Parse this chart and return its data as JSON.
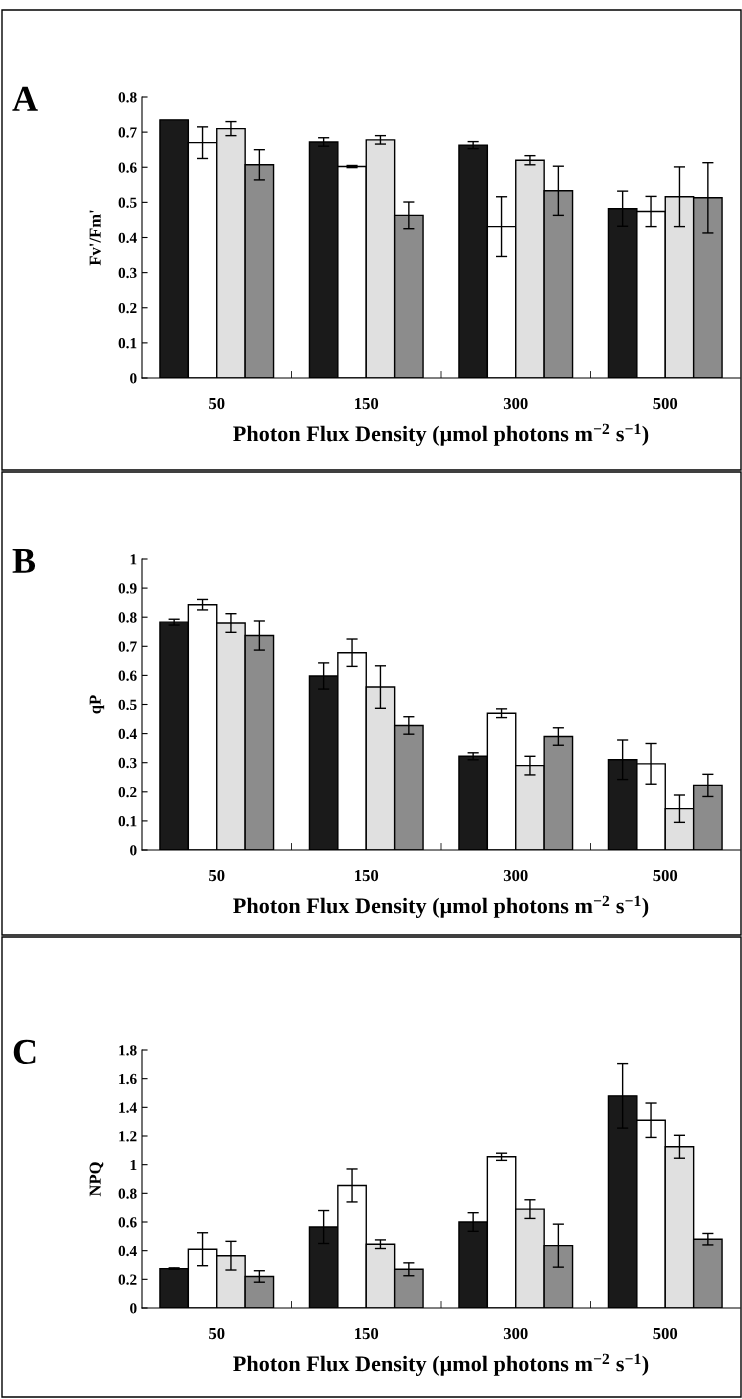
{
  "chart_data": [
    {
      "type": "bar",
      "title": "A",
      "ylabel": "Fv'/Fm'",
      "xlabel": "Photon Flux Density (μmol photons m$^{−2}$ s$^{−1}$)",
      "categories": [
        "50",
        "150",
        "300",
        "500"
      ],
      "ylim": [
        0,
        0.8
      ],
      "yticks": [
        0,
        0.1,
        0.2,
        0.3,
        0.4,
        0.5,
        0.6,
        0.7,
        0.8
      ],
      "grid": false,
      "legend": false,
      "series": [
        {
          "color": "#1a1a1a",
          "values": [
            0.735,
            0.672,
            0.663,
            0.482
          ],
          "errors": [
            null,
            0.012,
            0.01,
            0.05
          ]
        },
        {
          "color": "#ffffff",
          "values": [
            0.67,
            0.602,
            0.431,
            0.474
          ],
          "errors": [
            0.045,
            0.003,
            0.085,
            0.043
          ]
        },
        {
          "color": "#e0e0e0",
          "values": [
            0.71,
            0.678,
            0.62,
            0.516
          ],
          "errors": [
            0.02,
            0.012,
            0.013,
            0.085
          ]
        },
        {
          "color": "#8c8c8c",
          "values": [
            0.607,
            0.463,
            0.533,
            0.513
          ],
          "errors": [
            0.043,
            0.038,
            0.07,
            0.1
          ]
        }
      ]
    },
    {
      "type": "bar",
      "title": "B",
      "ylabel": "qP",
      "xlabel": "Photon Flux Density (μmol photons m$^{−2}$ s$^{−1}$)",
      "categories": [
        "50",
        "150",
        "300",
        "500"
      ],
      "ylim": [
        0,
        1
      ],
      "yticks": [
        0,
        0.1,
        0.2,
        0.3,
        0.4,
        0.5,
        0.6,
        0.7,
        0.8,
        0.9,
        1
      ],
      "grid": false,
      "legend": false,
      "series": [
        {
          "color": "#1a1a1a",
          "values": [
            0.783,
            0.598,
            0.322,
            0.31
          ],
          "errors": [
            0.01,
            0.045,
            0.012,
            0.068
          ]
        },
        {
          "color": "#ffffff",
          "values": [
            0.843,
            0.678,
            0.47,
            0.296
          ],
          "errors": [
            0.018,
            0.047,
            0.015,
            0.07
          ]
        },
        {
          "color": "#e0e0e0",
          "values": [
            0.78,
            0.56,
            0.29,
            0.142
          ],
          "errors": [
            0.032,
            0.073,
            0.032,
            0.047
          ]
        },
        {
          "color": "#8c8c8c",
          "values": [
            0.737,
            0.428,
            0.39,
            0.222
          ],
          "errors": [
            0.05,
            0.03,
            0.03,
            0.038
          ]
        }
      ]
    },
    {
      "type": "bar",
      "title": "C",
      "ylabel": "NPQ",
      "xlabel": "Photon Flux Density (μmol photons m$^{−2}$ s$^{−1}$)",
      "categories": [
        "50",
        "150",
        "300",
        "500"
      ],
      "ylim": [
        0,
        1.8
      ],
      "yticks": [
        0,
        0.2,
        0.4,
        0.6,
        0.8,
        1,
        1.2,
        1.4,
        1.6,
        1.8
      ],
      "grid": false,
      "legend": false,
      "series": [
        {
          "color": "#1a1a1a",
          "values": [
            0.275,
            0.565,
            0.6,
            1.48
          ],
          "errors": [
            0.005,
            0.115,
            0.065,
            0.225
          ]
        },
        {
          "color": "#ffffff",
          "values": [
            0.41,
            0.855,
            1.055,
            1.31
          ],
          "errors": [
            0.115,
            0.115,
            0.025,
            0.12
          ]
        },
        {
          "color": "#e0e0e0",
          "values": [
            0.365,
            0.445,
            0.69,
            1.125
          ],
          "errors": [
            0.1,
            0.03,
            0.065,
            0.08
          ]
        },
        {
          "color": "#8c8c8c",
          "values": [
            0.22,
            0.27,
            0.435,
            0.48
          ],
          "errors": [
            0.04,
            0.045,
            0.15,
            0.04
          ]
        }
      ]
    }
  ]
}
